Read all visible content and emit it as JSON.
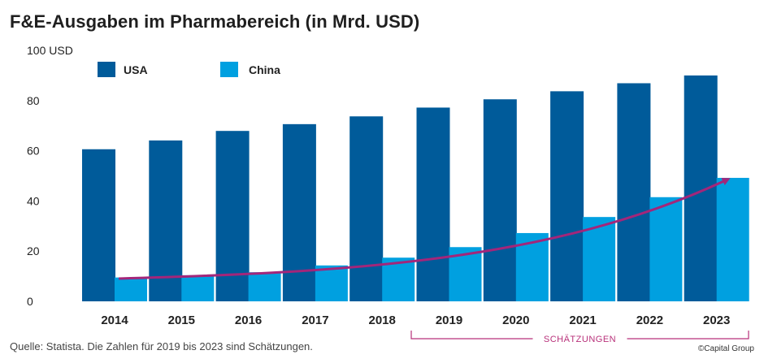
{
  "title": "F&E-Ausgaben im Pharmabereich (in Mrd. USD)",
  "source": "Quelle: Statista. Die Zahlen für 2019 bis 2023 sind Schätzungen.",
  "credit": "©Capital Group",
  "estimate_label": "SCHÄTZUNGEN",
  "colors": {
    "usa": "#005b9a",
    "china": "#00a0e0",
    "trend": "#a3267a",
    "bracket": "#b8317a"
  },
  "chart_data": {
    "type": "bar",
    "title": "F&E-Ausgaben im Pharmabereich (in Mrd. USD)",
    "categories": [
      "2014",
      "2015",
      "2016",
      "2017",
      "2018",
      "2019",
      "2020",
      "2021",
      "2022",
      "2023"
    ],
    "series": [
      {
        "name": "USA",
        "values": [
          60.6,
          64.1,
          67.9,
          70.6,
          73.7,
          77.2,
          80.5,
          83.7,
          86.9,
          90.0
        ]
      },
      {
        "name": "China",
        "values": [
          9.5,
          10.4,
          11.6,
          14.3,
          17.4,
          21.6,
          27.2,
          33.6,
          41.5,
          49.2
        ]
      }
    ],
    "y_tick_labels": [
      "0",
      "20",
      "40",
      "60",
      "80",
      "100 USD"
    ],
    "ylim": [
      0,
      100
    ],
    "legend_position": "top-left",
    "estimate_range": [
      "2019",
      "2023"
    ],
    "trend_arrow": "China"
  }
}
